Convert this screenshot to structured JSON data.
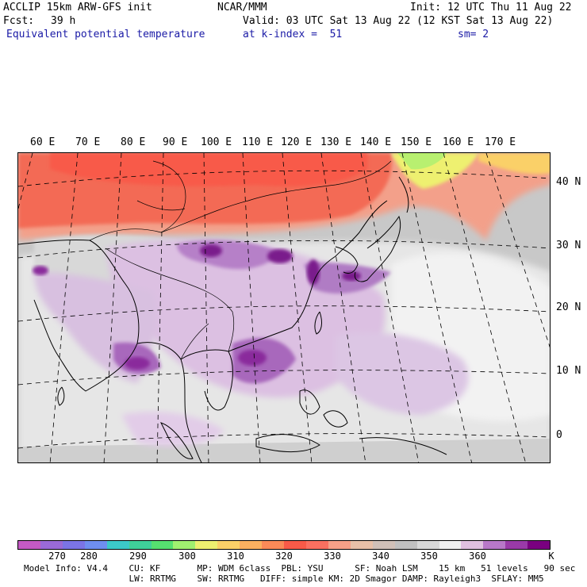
{
  "header": {
    "model_title": "ACCLIP 15km ARW-GFS init",
    "org": "NCAR/MMM",
    "init": "Init: 12 UTC Thu 11 Aug 22",
    "fcst_label": "Fcst:",
    "fcst_value": "39 h",
    "valid": "Valid: 03 UTC Sat 13 Aug 22 (12 KST Sat 13 Aug 22)",
    "field": "Equivalent potential temperature",
    "level": "at k-index =  51",
    "smooth": "sm= 2"
  },
  "map": {
    "lon_labels": [
      "60 E",
      "70 E",
      "80 E",
      "90 E",
      "100 E",
      "110 E",
      "120 E",
      "130 E",
      "140 E",
      "150 E",
      "160 E",
      "170 E"
    ],
    "lat_labels": [
      "40 N",
      "30 N",
      "20 N",
      "10 N",
      "0"
    ]
  },
  "colorbar": {
    "colors": [
      "#c45ac4",
      "#9a6ad8",
      "#7b74e6",
      "#6f8ef0",
      "#3cc8c8",
      "#3fd09a",
      "#56e070",
      "#a0f070",
      "#eef070",
      "#fad068",
      "#fab060",
      "#fa8a58",
      "#f85a48",
      "#fa7060",
      "#f6a088",
      "#e8c0a8",
      "#d0c0b8",
      "#c0c0c0",
      "#d8d8d8",
      "#f0f0f0",
      "#e0c0e0",
      "#b878c8",
      "#9a3aa8",
      "#7a0080"
    ],
    "labels": [
      "270",
      "280",
      "290",
      "300",
      "310",
      "320",
      "330",
      "340",
      "350",
      "360",
      "K"
    ],
    "unit": "K"
  },
  "footer": {
    "line1": "Model Info: V4.4    CU: KF       MP: WDM 6class  PBL: YSU      SF: Noah LSM    15 km   51 levels   90 sec",
    "line2": "                    LW: RRTMG    SW: RRTMG   DIFF: simple KM: 2D Smagor DAMP: Rayleigh3  SFLAY: MM5"
  }
}
